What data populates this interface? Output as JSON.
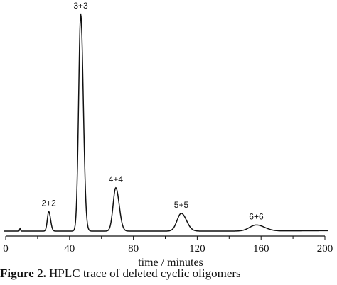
{
  "chart_data": {
    "type": "line",
    "title": "",
    "xlabel": "time / minutes",
    "ylabel": "",
    "xlim": [
      0,
      200
    ],
    "xticks": [
      "0",
      "40",
      "80",
      "120",
      "160",
      "200"
    ],
    "grid": false,
    "legend": "none",
    "series": [
      {
        "color": "#111111",
        "peaks": [
          {
            "label": "2+2",
            "x": 27,
            "height": 0.09
          },
          {
            "label": "3+3",
            "x": 47,
            "height": 1.0
          },
          {
            "label": "4+4",
            "x": 69,
            "height": 0.2
          },
          {
            "label": "5+5",
            "x": 110,
            "height": 0.082
          },
          {
            "label": "6+6",
            "x": 157,
            "height": 0.028
          }
        ]
      }
    ]
  },
  "caption": {
    "prefix": "Figure 2.",
    "text": "HPLC trace of deleted cyclic oligomers"
  }
}
